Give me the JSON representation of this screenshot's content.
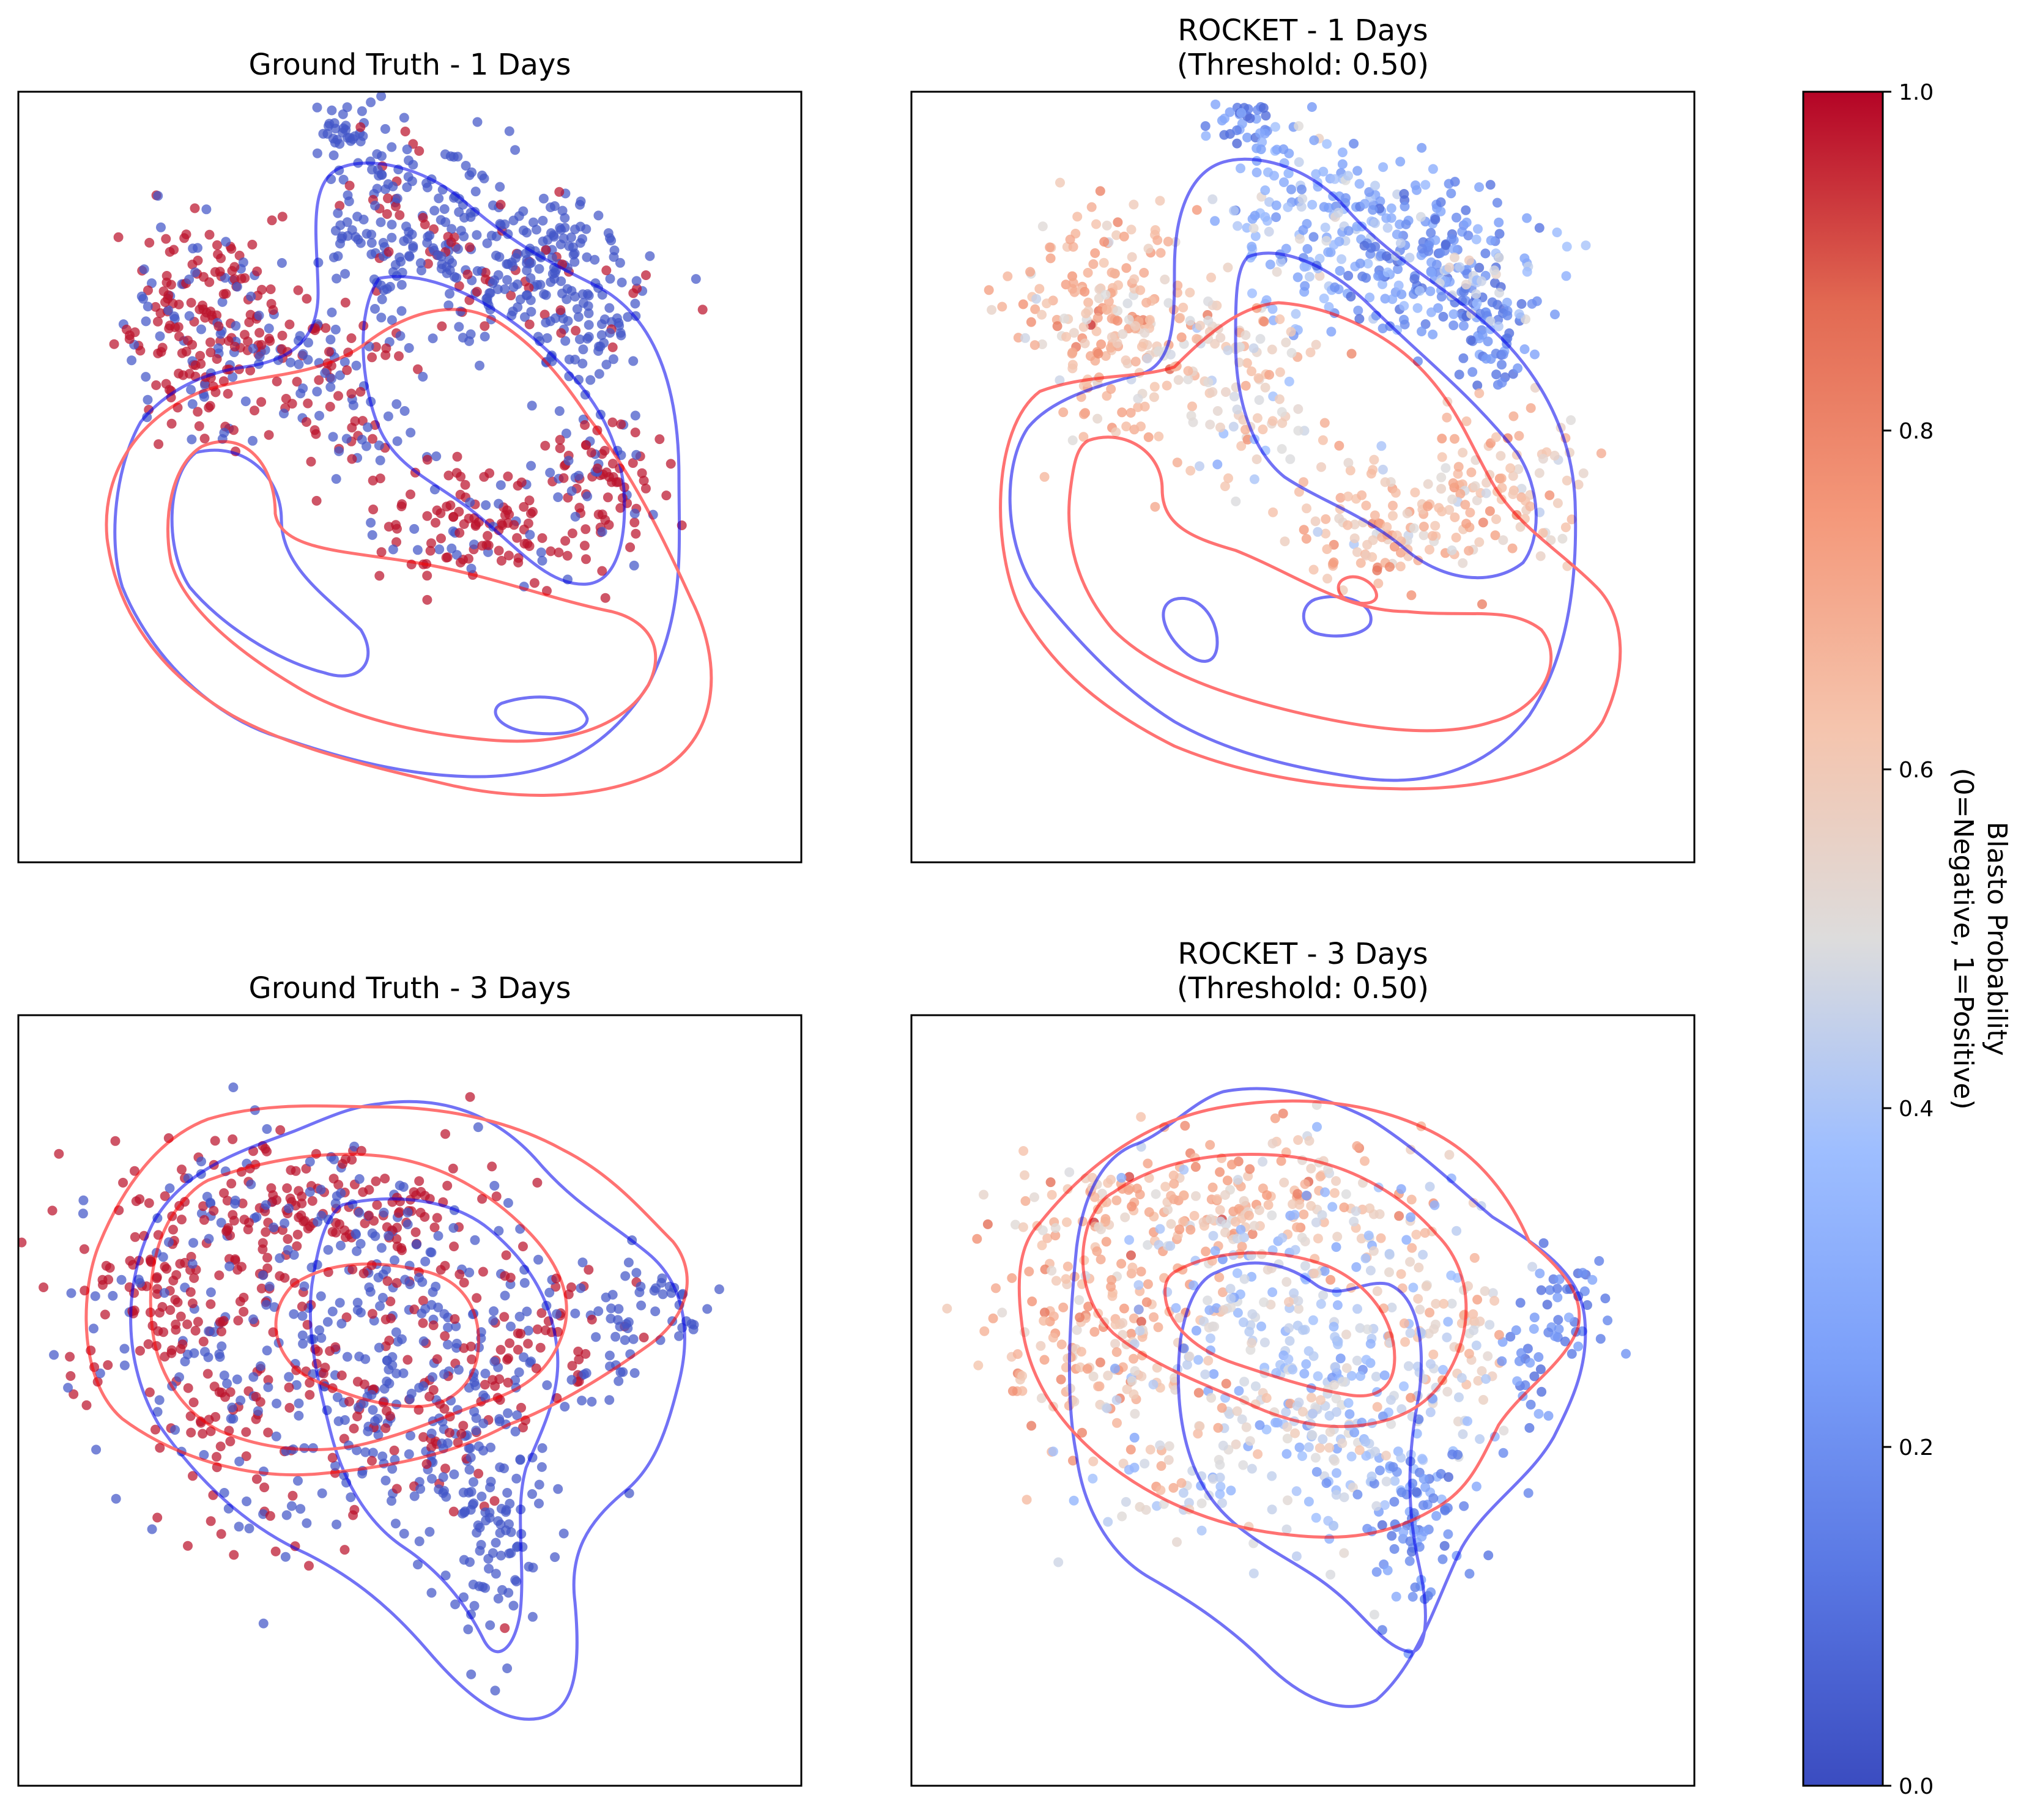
{
  "figure": {
    "background": "#ffffff",
    "colormap": "coolwarm",
    "contour_colors": {
      "negative": "#3b3bff",
      "positive": "#ff4a4a"
    }
  },
  "chart_data": [
    {
      "type": "scatter",
      "title": "Ground Truth - 1 Days",
      "subtitle": "",
      "coloring": "binary",
      "points": 1000,
      "contours": {
        "negative": "blue",
        "positive": "red",
        "levels": 2
      },
      "axes": "hidden"
    },
    {
      "type": "scatter",
      "title": "ROCKET - 1 Days",
      "subtitle": "(Threshold: 0.50)",
      "coloring": "probability",
      "points": 1000,
      "contours": {
        "negative": "blue",
        "positive": "red",
        "levels": 2
      },
      "axes": "hidden"
    },
    {
      "type": "scatter",
      "title": "Ground Truth - 3 Days",
      "subtitle": "",
      "coloring": "binary",
      "points": 1000,
      "contours": {
        "negative": "blue",
        "positive": "red",
        "levels": 2
      },
      "axes": "hidden"
    },
    {
      "type": "scatter",
      "title": "ROCKET - 3 Days",
      "subtitle": "(Threshold: 0.50)",
      "coloring": "probability",
      "points": 1000,
      "contours": {
        "negative": "blue",
        "positive": "red",
        "levels": 2
      },
      "axes": "hidden"
    }
  ],
  "colorbar": {
    "label_line1": "Blasto Probability",
    "label_line2": "(0=Negative, 1=Positive)",
    "ticks": [
      "0.0",
      "0.2",
      "0.4",
      "0.6",
      "0.8",
      "1.0"
    ],
    "tick_values": [
      0.0,
      0.2,
      0.4,
      0.6,
      0.8,
      1.0
    ],
    "range": [
      0,
      1
    ],
    "colormap": "coolwarm"
  }
}
